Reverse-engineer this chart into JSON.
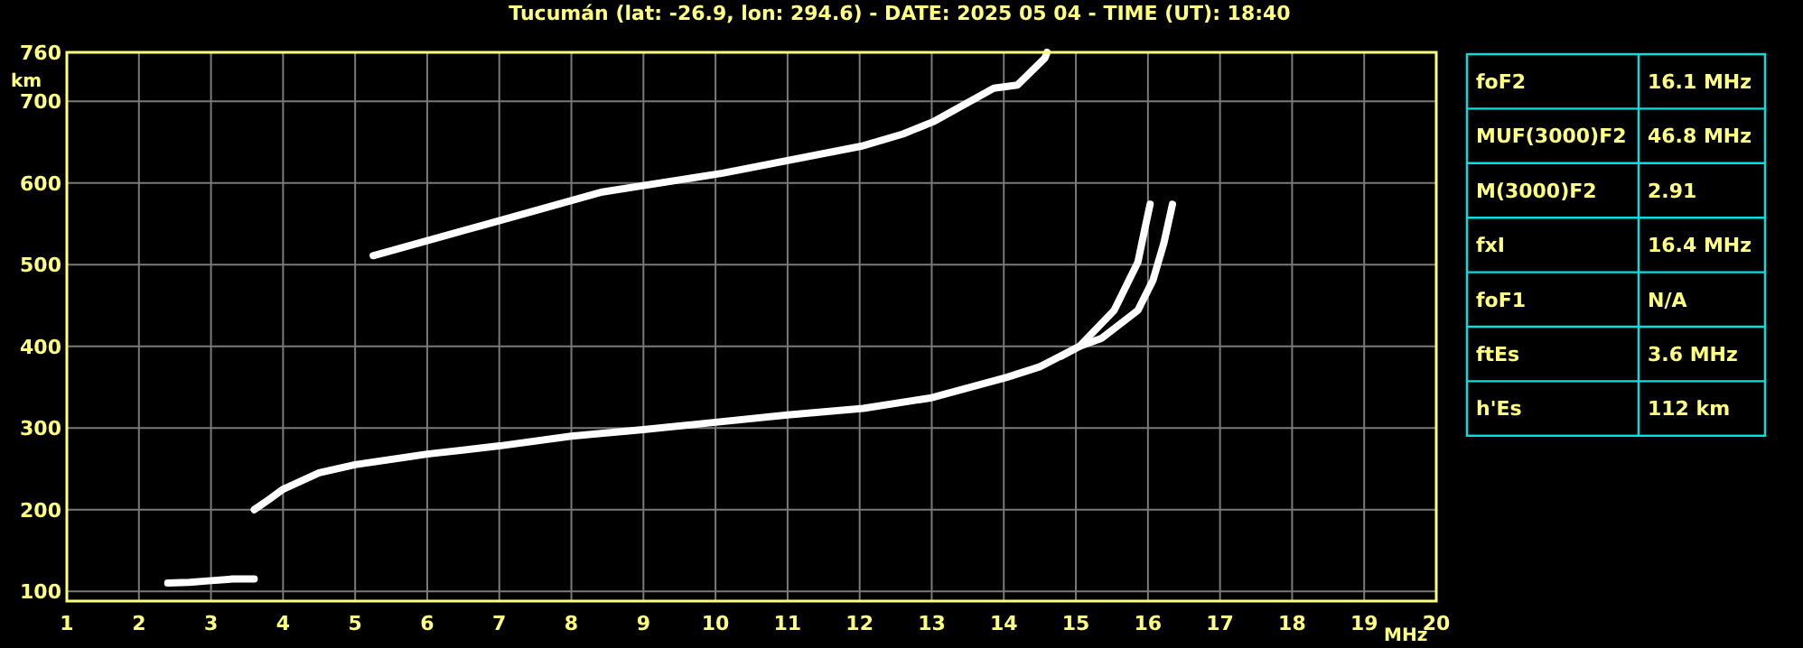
{
  "chart_data": [
    {
      "type": "line",
      "title": "Tucumán (lat: -26.9, lon: 294.6) - DATE: 2025 05 04 - TIME (UT): 18:40",
      "xlabel": "MHz",
      "ylabel": "km",
      "xlim": [
        1,
        20
      ],
      "ylim": [
        88,
        760
      ],
      "xticks": [
        1,
        2,
        3,
        4,
        5,
        6,
        7,
        8,
        9,
        10,
        11,
        12,
        13,
        14,
        15,
        16,
        17,
        18,
        19,
        20
      ],
      "yticks": [
        100,
        200,
        300,
        400,
        500,
        600,
        700,
        760
      ],
      "grid": true,
      "marker": "none",
      "line_style": "solid",
      "series": [
        {
          "color": "#ffffff",
          "x": [
            2.4,
            2.7,
            3.0,
            3.3,
            3.6
          ],
          "values": [
            110,
            111,
            113,
            115,
            115
          ]
        },
        {
          "color": "#ffffff",
          "x": [
            3.6,
            3.8,
            4,
            4.5,
            5,
            6,
            7,
            8,
            9,
            10,
            11,
            12.05,
            13,
            14.04,
            14.5,
            15.05,
            15.53,
            15.86,
            15.95,
            16.03
          ],
          "values": [
            200,
            212,
            225,
            245,
            255,
            268,
            278,
            290,
            298,
            307,
            316,
            324,
            337,
            362,
            375,
            400,
            444,
            503,
            541,
            574
          ]
        },
        {
          "color": "#ffffff",
          "x": [
            14.8,
            15.05,
            15.36,
            15.86,
            16.07,
            16.22,
            16.34
          ],
          "values": [
            388,
            400,
            410,
            444,
            481,
            526,
            574
          ]
        },
        {
          "color": "#ffffff",
          "x": [
            5.25,
            6.76,
            8.43,
            10.1,
            12.02,
            12.6,
            13.02,
            13.86,
            14.19,
            14.57,
            14.6
          ],
          "values": [
            511,
            548,
            589,
            612,
            645,
            660,
            675,
            716,
            720,
            753,
            760
          ]
        }
      ]
    },
    {
      "type": "other",
      "annotations": [
        "foF2",
        "16.1 MHz",
        "MUF(3000)F2",
        "46.8 MHz",
        "M(3000)F2",
        "2.91",
        "fxI",
        "16.4 MHz",
        "foF1",
        "N/A",
        "ftEs",
        "3.6 MHz",
        "h'Es",
        "112 km"
      ]
    }
  ]
}
